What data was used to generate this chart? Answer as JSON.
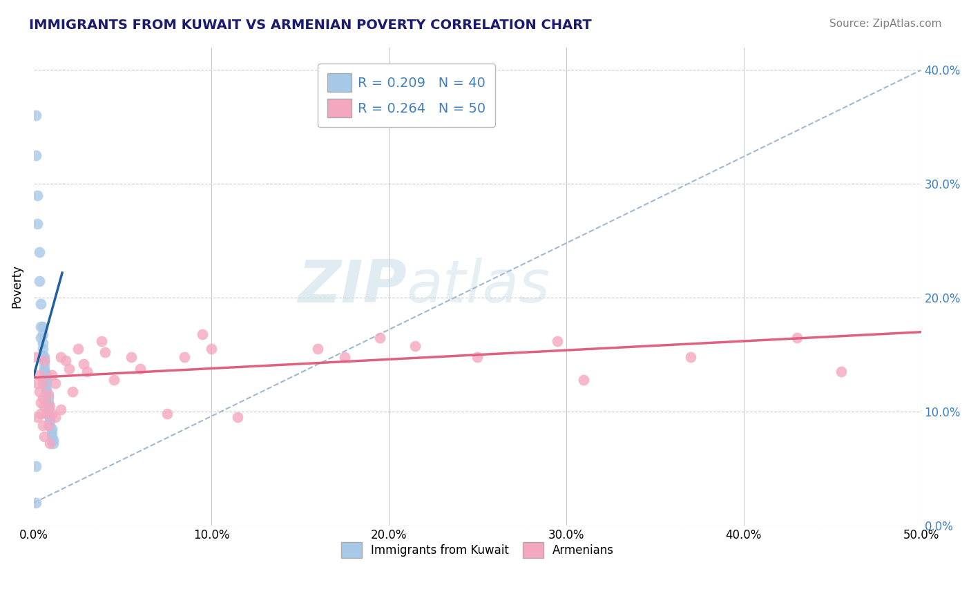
{
  "title": "IMMIGRANTS FROM KUWAIT VS ARMENIAN POVERTY CORRELATION CHART",
  "source": "Source: ZipAtlas.com",
  "ylabel": "Poverty",
  "xlim": [
    0.0,
    0.5
  ],
  "ylim": [
    0.0,
    0.42
  ],
  "xticks": [
    0.0,
    0.1,
    0.2,
    0.3,
    0.4,
    0.5
  ],
  "yticks": [
    0.0,
    0.1,
    0.2,
    0.3,
    0.4
  ],
  "ytick_labels_right": [
    "0.0%",
    "10.0%",
    "20.0%",
    "30.0%",
    "40.0%"
  ],
  "xtick_labels": [
    "0.0%",
    "10.0%",
    "20.0%",
    "30.0%",
    "40.0%",
    "50.0%"
  ],
  "watermark_zip": "ZIP",
  "watermark_atlas": "atlas",
  "kuwait_color": "#a8c8e8",
  "armenian_color": "#f4a8c0",
  "kuwait_line_color": "#2060a0",
  "armenian_line_color": "#e06080",
  "dashed_line_color": "#a0b8d0",
  "background": "#ffffff",
  "grid_color": "#c8c8c8",
  "title_color": "#1a1a6e",
  "source_color": "#808080",
  "right_axis_color": "#4080c0",
  "kuwait_points": [
    [
      0.001,
      0.36
    ],
    [
      0.001,
      0.325
    ],
    [
      0.002,
      0.29
    ],
    [
      0.002,
      0.265
    ],
    [
      0.003,
      0.24
    ],
    [
      0.003,
      0.215
    ],
    [
      0.004,
      0.195
    ],
    [
      0.004,
      0.175
    ],
    [
      0.004,
      0.165
    ],
    [
      0.005,
      0.175
    ],
    [
      0.005,
      0.168
    ],
    [
      0.005,
      0.16
    ],
    [
      0.005,
      0.155
    ],
    [
      0.005,
      0.15
    ],
    [
      0.006,
      0.148
    ],
    [
      0.006,
      0.145
    ],
    [
      0.006,
      0.142
    ],
    [
      0.006,
      0.138
    ],
    [
      0.006,
      0.135
    ],
    [
      0.007,
      0.132
    ],
    [
      0.007,
      0.128
    ],
    [
      0.007,
      0.125
    ],
    [
      0.007,
      0.12
    ],
    [
      0.007,
      0.118
    ],
    [
      0.007,
      0.115
    ],
    [
      0.008,
      0.112
    ],
    [
      0.008,
      0.108
    ],
    [
      0.008,
      0.105
    ],
    [
      0.008,
      0.102
    ],
    [
      0.008,
      0.098
    ],
    [
      0.009,
      0.095
    ],
    [
      0.009,
      0.092
    ],
    [
      0.009,
      0.088
    ],
    [
      0.01,
      0.085
    ],
    [
      0.01,
      0.082
    ],
    [
      0.01,
      0.078
    ],
    [
      0.011,
      0.075
    ],
    [
      0.011,
      0.072
    ],
    [
      0.001,
      0.052
    ],
    [
      0.001,
      0.02
    ]
  ],
  "armenian_points": [
    [
      0.001,
      0.148
    ],
    [
      0.002,
      0.125
    ],
    [
      0.002,
      0.095
    ],
    [
      0.003,
      0.132
    ],
    [
      0.003,
      0.118
    ],
    [
      0.004,
      0.108
    ],
    [
      0.004,
      0.098
    ],
    [
      0.005,
      0.125
    ],
    [
      0.005,
      0.112
    ],
    [
      0.005,
      0.088
    ],
    [
      0.006,
      0.145
    ],
    [
      0.006,
      0.105
    ],
    [
      0.006,
      0.078
    ],
    [
      0.007,
      0.098
    ],
    [
      0.008,
      0.115
    ],
    [
      0.008,
      0.088
    ],
    [
      0.009,
      0.105
    ],
    [
      0.009,
      0.072
    ],
    [
      0.01,
      0.132
    ],
    [
      0.01,
      0.098
    ],
    [
      0.012,
      0.095
    ],
    [
      0.012,
      0.125
    ],
    [
      0.015,
      0.148
    ],
    [
      0.015,
      0.102
    ],
    [
      0.018,
      0.145
    ],
    [
      0.02,
      0.138
    ],
    [
      0.022,
      0.118
    ],
    [
      0.025,
      0.155
    ],
    [
      0.028,
      0.142
    ],
    [
      0.03,
      0.135
    ],
    [
      0.038,
      0.162
    ],
    [
      0.04,
      0.152
    ],
    [
      0.045,
      0.128
    ],
    [
      0.055,
      0.148
    ],
    [
      0.06,
      0.138
    ],
    [
      0.075,
      0.098
    ],
    [
      0.085,
      0.148
    ],
    [
      0.095,
      0.168
    ],
    [
      0.1,
      0.155
    ],
    [
      0.115,
      0.095
    ],
    [
      0.16,
      0.155
    ],
    [
      0.175,
      0.148
    ],
    [
      0.195,
      0.165
    ],
    [
      0.215,
      0.158
    ],
    [
      0.25,
      0.148
    ],
    [
      0.295,
      0.162
    ],
    [
      0.31,
      0.128
    ],
    [
      0.37,
      0.148
    ],
    [
      0.43,
      0.165
    ],
    [
      0.455,
      0.135
    ]
  ],
  "kuwait_line": [
    0.0,
    0.016,
    0.132,
    0.222
  ],
  "armenian_line": [
    0.0,
    0.5,
    0.13,
    0.17
  ]
}
